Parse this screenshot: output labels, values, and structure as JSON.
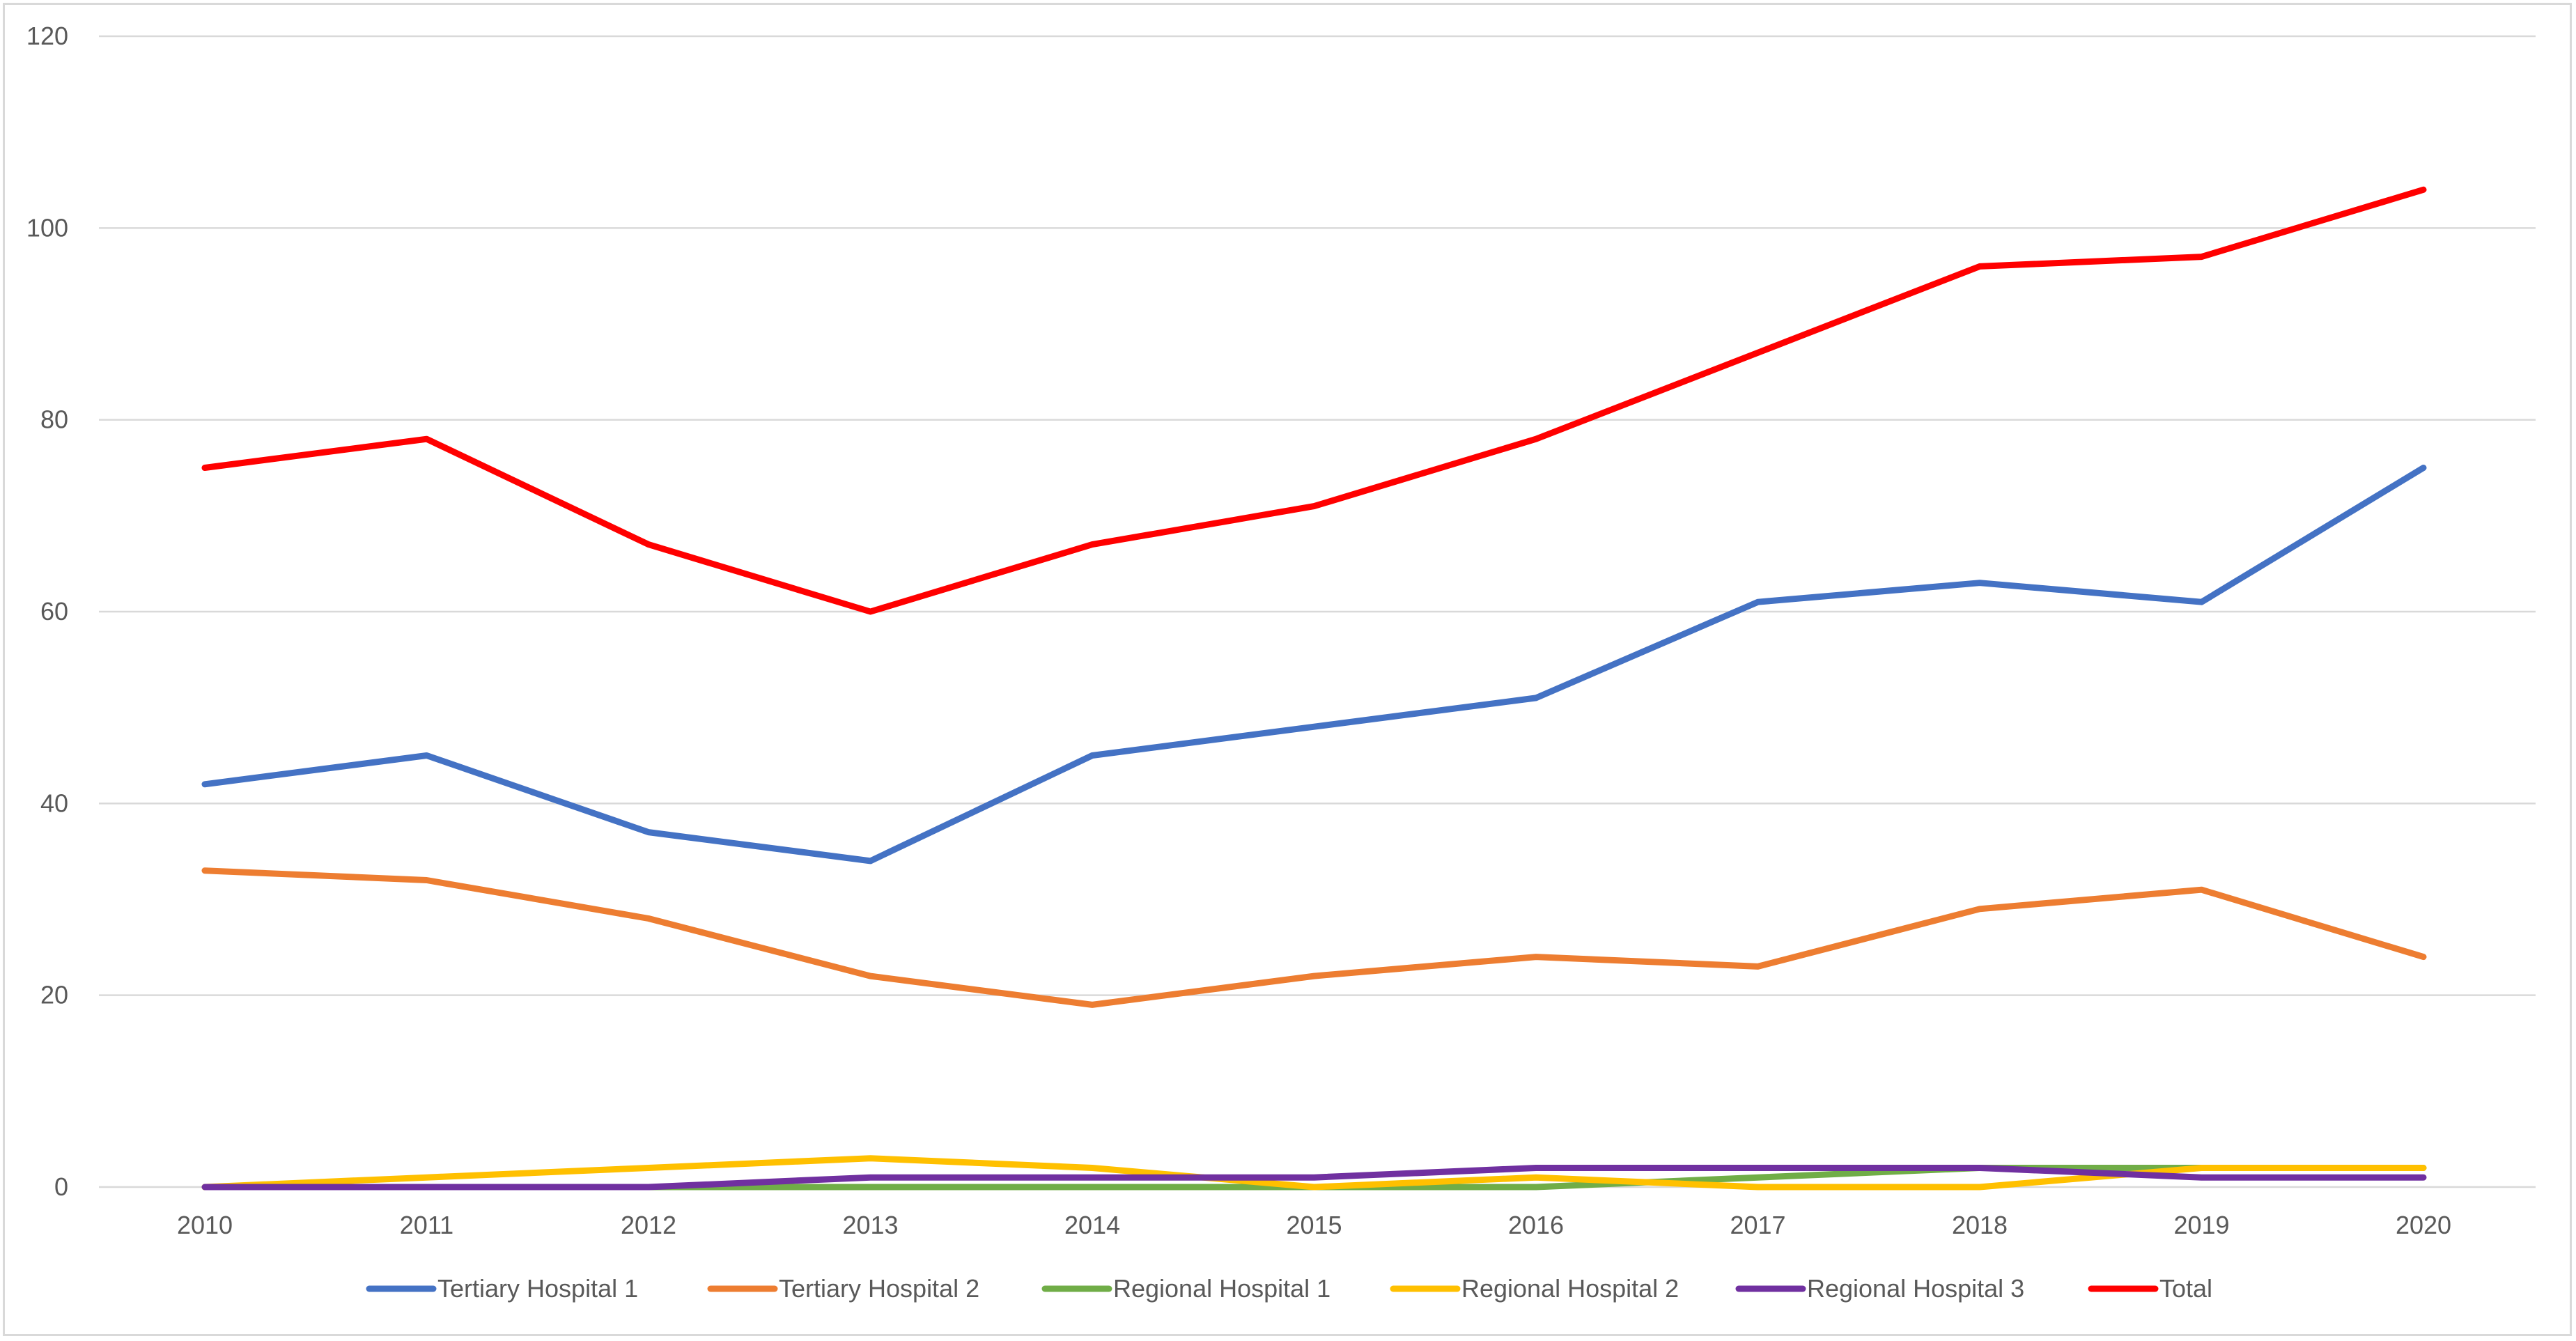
{
  "chart_data": {
    "type": "line",
    "title": "",
    "xlabel": "",
    "ylabel": "",
    "categories": [
      "2010",
      "2011",
      "2012",
      "2013",
      "2014",
      "2015",
      "2016",
      "2017",
      "2018",
      "2019",
      "2020"
    ],
    "ylim": [
      0,
      120
    ],
    "yticks": [
      "0",
      "20",
      "40",
      "60",
      "80",
      "100",
      "120"
    ],
    "grid": true,
    "legend_position": "bottom",
    "series": [
      {
        "name": "Tertiary Hospital 1",
        "color": "#4472C4",
        "values": [
          42,
          45,
          37,
          34,
          45,
          48,
          51,
          61,
          63,
          61,
          75
        ]
      },
      {
        "name": "Tertiary Hospital 2",
        "color": "#ED7D31",
        "values": [
          33,
          32,
          28,
          22,
          19,
          22,
          24,
          23,
          29,
          31,
          24
        ]
      },
      {
        "name": "Regional Hospital 1",
        "color": "#70AD47",
        "values": [
          0,
          0,
          0,
          0,
          0,
          0,
          0,
          1,
          2,
          2,
          2
        ]
      },
      {
        "name": "Regional Hospital 2",
        "color": "#FFC000",
        "values": [
          0,
          1,
          2,
          3,
          2,
          0,
          1,
          0,
          0,
          2,
          2
        ]
      },
      {
        "name": "Regional Hospital 3",
        "color": "#7030A0",
        "values": [
          0,
          0,
          0,
          1,
          1,
          1,
          2,
          2,
          2,
          1,
          1
        ]
      },
      {
        "name": "Total",
        "color": "#FF0000",
        "values": [
          75,
          78,
          67,
          60,
          67,
          71,
          78,
          87,
          96,
          97,
          104
        ]
      }
    ]
  }
}
